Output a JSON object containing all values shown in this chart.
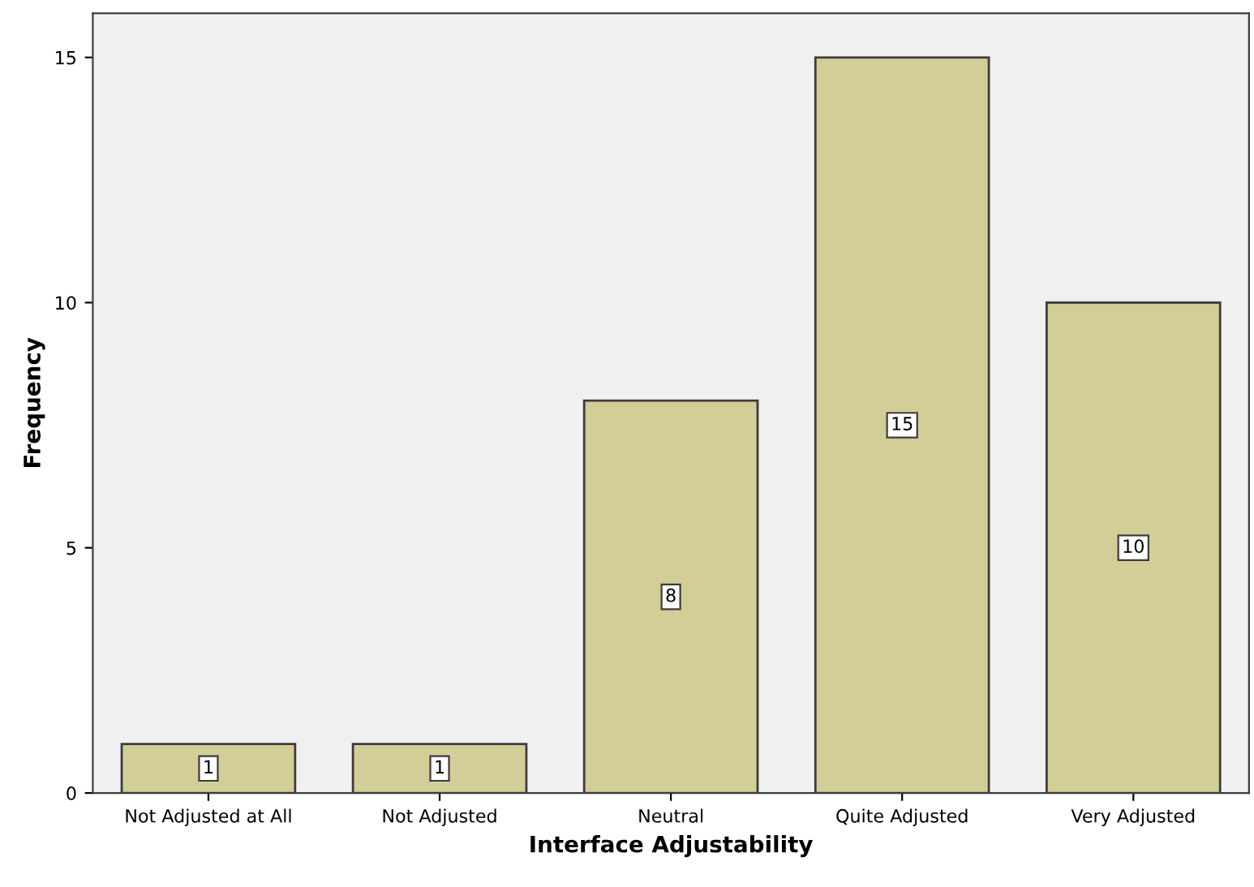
{
  "chart_data": {
    "type": "bar",
    "xlabel": "Interface Adjustability",
    "ylabel": "Frequency",
    "categories": [
      "Not Adjusted at All",
      "Not Adjusted",
      "Neutral",
      "Quite Adjusted",
      "Very Adjusted"
    ],
    "values": [
      1,
      1,
      8,
      15,
      10
    ],
    "color": "#d3ce97",
    "ylim": [
      0,
      15.9
    ],
    "yticks": [
      0,
      5,
      10,
      15
    ],
    "grid": false,
    "data_labels": true
  }
}
